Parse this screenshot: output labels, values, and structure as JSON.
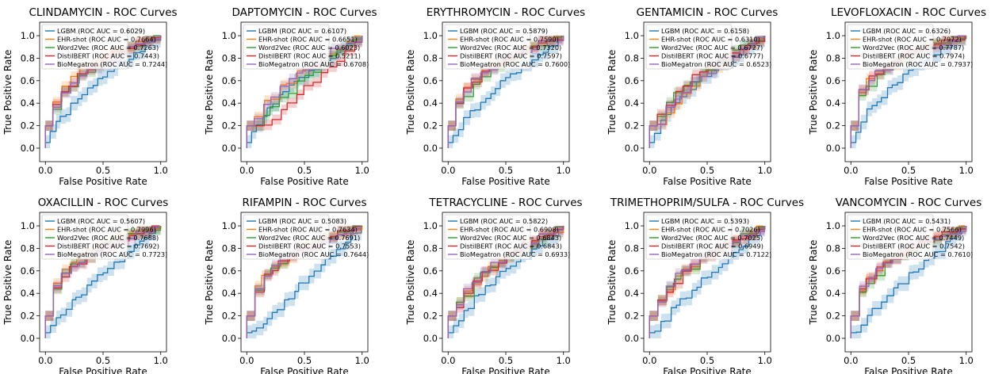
{
  "shared": {
    "xlabel": "False Positive Rate",
    "ylabel": "True Positive Rate",
    "xticks": [
      "0.0",
      "0.5",
      "1.0"
    ],
    "yticks": [
      "0.0",
      "0.2",
      "0.4",
      "0.6",
      "0.8",
      "1.0"
    ],
    "series_names": [
      "LGBM",
      "EHR-shot",
      "Word2Vec",
      "DistilBERT",
      "BioMegatron"
    ],
    "series_colors": [
      "#1f77b4",
      "#ff7f0e",
      "#2ca02c",
      "#d62728",
      "#9467bd"
    ]
  },
  "chart_data": [
    {
      "type": "line",
      "title": "CLINDAMYCIN - ROC Curves",
      "xlabel": "False Positive Rate",
      "ylabel": "True Positive Rate",
      "xlim": [
        0,
        1
      ],
      "ylim": [
        -0.1,
        1.1
      ],
      "grid": false,
      "legend": "upper-left",
      "series": [
        {
          "name": "LGBM",
          "auc_label": "LGBM (ROC AUC = 0.6029)",
          "auc": 0.6029
        },
        {
          "name": "EHR-shot",
          "auc_label": "EHR-shot (ROC AUC = 0.7664)",
          "auc": 0.7664
        },
        {
          "name": "Word2Vec",
          "auc_label": "Word2Vec (ROC AUC = 0.7263)",
          "auc": 0.7263
        },
        {
          "name": "DistilBERT",
          "auc_label": "DistilBERT (ROC AUC = 0.7443)",
          "auc": 0.7443
        },
        {
          "name": "BioMegatron",
          "auc_label": "BioMegatron (ROC AUC = 0.7244)",
          "auc": 0.7244
        }
      ]
    },
    {
      "type": "line",
      "title": "DAPTOMYCIN - ROC Curves",
      "xlabel": "False Positive Rate",
      "ylabel": "True Positive Rate",
      "xlim": [
        0,
        1
      ],
      "ylim": [
        -0.1,
        1.1
      ],
      "grid": false,
      "legend": "upper-left",
      "series": [
        {
          "name": "LGBM",
          "auc_label": "LGBM (ROC AUC = 0.6107)",
          "auc": 0.6107
        },
        {
          "name": "EHR-shot",
          "auc_label": "EHR-shot (ROC AUC = 0.6651)",
          "auc": 0.6651
        },
        {
          "name": "Word2Vec",
          "auc_label": "Word2Vec (ROC AUC = 0.6023)",
          "auc": 0.6023
        },
        {
          "name": "DistilBERT",
          "auc_label": "DistilBERT (ROC AUC = 0.5211)",
          "auc": 0.5211
        },
        {
          "name": "BioMegatron",
          "auc_label": "BioMegatron (ROC AUC = 0.6708)",
          "auc": 0.6708
        }
      ]
    },
    {
      "type": "line",
      "title": "ERYTHROMYCIN - ROC Curves",
      "xlabel": "False Positive Rate",
      "ylabel": "True Positive Rate",
      "xlim": [
        0,
        1
      ],
      "ylim": [
        -0.1,
        1.1
      ],
      "grid": false,
      "legend": "upper-left",
      "series": [
        {
          "name": "LGBM",
          "auc_label": "LGBM (ROC AUC = 0.5879)",
          "auc": 0.5879
        },
        {
          "name": "EHR-shot",
          "auc_label": "EHR-shot (ROC AUC = 0.7590)",
          "auc": 0.759
        },
        {
          "name": "Word2Vec",
          "auc_label": "Word2Vec (ROC AUC = 0.7320)",
          "auc": 0.732
        },
        {
          "name": "DistilBERT",
          "auc_label": "DistilBERT (ROC AUC = 0.7597)",
          "auc": 0.7597
        },
        {
          "name": "BioMegatron",
          "auc_label": "BioMegatron (ROC AUC = 0.7600)",
          "auc": 0.76
        }
      ]
    },
    {
      "type": "line",
      "title": "GENTAMICIN - ROC Curves",
      "xlabel": "False Positive Rate",
      "ylabel": "True Positive Rate",
      "xlim": [
        0,
        1
      ],
      "ylim": [
        -0.1,
        1.1
      ],
      "grid": false,
      "legend": "upper-left",
      "series": [
        {
          "name": "LGBM",
          "auc_label": "LGBM (ROC AUC = 0.6158)",
          "auc": 0.6158
        },
        {
          "name": "EHR-shot",
          "auc_label": "EHR-shot (ROC AUC = 0.6310)",
          "auc": 0.631
        },
        {
          "name": "Word2Vec",
          "auc_label": "Word2Vec (ROC AUC = 0.6727)",
          "auc": 0.6727
        },
        {
          "name": "DistilBERT",
          "auc_label": "DistilBERT (ROC AUC = 0.6777)",
          "auc": 0.6777
        },
        {
          "name": "BioMegatron",
          "auc_label": "BioMegatron (ROC AUC = 0.6523)",
          "auc": 0.6523
        }
      ]
    },
    {
      "type": "line",
      "title": "LEVOFLOXACIN - ROC Curves",
      "xlabel": "False Positive Rate",
      "ylabel": "True Positive Rate",
      "xlim": [
        0,
        1
      ],
      "ylim": [
        -0.1,
        1.1
      ],
      "grid": false,
      "legend": "upper-left",
      "series": [
        {
          "name": "LGBM",
          "auc_label": "LGBM (ROC AUC = 0.6326)",
          "auc": 0.6326
        },
        {
          "name": "EHR-shot",
          "auc_label": "EHR-shot (ROC AUC = 0.7972)",
          "auc": 0.7972
        },
        {
          "name": "Word2Vec",
          "auc_label": "Word2Vec (ROC AUC = 0.7787)",
          "auc": 0.7787
        },
        {
          "name": "DistilBERT",
          "auc_label": "DistilBERT (ROC AUC = 0.7974)",
          "auc": 0.7974
        },
        {
          "name": "BioMegatron",
          "auc_label": "BioMegatron (ROC AUC = 0.7937)",
          "auc": 0.7937
        }
      ]
    },
    {
      "type": "line",
      "title": "OXACILLIN - ROC Curves",
      "xlabel": "False Positive Rate",
      "ylabel": "True Positive Rate",
      "xlim": [
        0,
        1
      ],
      "ylim": [
        -0.1,
        1.1
      ],
      "grid": false,
      "legend": "upper-left",
      "series": [
        {
          "name": "LGBM",
          "auc_label": "LGBM (ROC AUC = 0.5607)",
          "auc": 0.5607
        },
        {
          "name": "EHR-shot",
          "auc_label": "EHR-shot (ROC AUC = 0.7996)",
          "auc": 0.7996
        },
        {
          "name": "Word2Vec",
          "auc_label": "Word2Vec (ROC AUC = 0.7688)",
          "auc": 0.7688
        },
        {
          "name": "DistilBERT",
          "auc_label": "DistilBERT (ROC AUC = 0.7692)",
          "auc": 0.7692
        },
        {
          "name": "BioMegatron",
          "auc_label": "BioMegatron (ROC AUC = 0.7723)",
          "auc": 0.7723
        }
      ]
    },
    {
      "type": "line",
      "title": "RIFAMPIN - ROC Curves",
      "xlabel": "False Positive Rate",
      "ylabel": "True Positive Rate",
      "xlim": [
        0,
        1
      ],
      "ylim": [
        -0.1,
        1.1
      ],
      "grid": false,
      "legend": "upper-left",
      "series": [
        {
          "name": "LGBM",
          "auc_label": "LGBM (ROC AUC = 0.5083)",
          "auc": 0.5083
        },
        {
          "name": "EHR-shot",
          "auc_label": "EHR-shot (ROC AUC = 0.7634)",
          "auc": 0.7634
        },
        {
          "name": "Word2Vec",
          "auc_label": "Word2Vec (ROC AUC = 0.7691)",
          "auc": 0.7691
        },
        {
          "name": "DistilBERT",
          "auc_label": "DistilBERT (ROC AUC = 0.7553)",
          "auc": 0.7553
        },
        {
          "name": "BioMegatron",
          "auc_label": "BioMegatron (ROC AUC = 0.7644)",
          "auc": 0.7644
        }
      ]
    },
    {
      "type": "line",
      "title": "TETRACYCLINE - ROC Curves",
      "xlabel": "False Positive Rate",
      "ylabel": "True Positive Rate",
      "xlim": [
        0,
        1
      ],
      "ylim": [
        -0.1,
        1.1
      ],
      "grid": false,
      "legend": "upper-left",
      "series": [
        {
          "name": "LGBM",
          "auc_label": "LGBM (ROC AUC = 0.5822)",
          "auc": 0.5822
        },
        {
          "name": "EHR-shot",
          "auc_label": "EHR-shot (ROC AUC = 0.6908)",
          "auc": 0.6908
        },
        {
          "name": "Word2Vec",
          "auc_label": "Word2Vec (ROC AUC = 0.6843)",
          "auc": 0.6843
        },
        {
          "name": "DistilBERT",
          "auc_label": "DistilBERT (ROC AUC = 0.6843)",
          "auc": 0.6843
        },
        {
          "name": "BioMegatron",
          "auc_label": "BioMegatron (ROC AUC = 0.6933)",
          "auc": 0.6933
        }
      ]
    },
    {
      "type": "line",
      "title": "TRIMETHOPRIM/SULFA - ROC Curves",
      "xlabel": "False Positive Rate",
      "ylabel": "True Positive Rate",
      "xlim": [
        0,
        1
      ],
      "ylim": [
        -0.1,
        1.1
      ],
      "grid": false,
      "legend": "upper-left",
      "series": [
        {
          "name": "LGBM",
          "auc_label": "LGBM (ROC AUC = 0.5393)",
          "auc": 0.5393
        },
        {
          "name": "EHR-shot",
          "auc_label": "EHR-shot (ROC AUC = 0.7026)",
          "auc": 0.7026
        },
        {
          "name": "Word2Vec",
          "auc_label": "Word2Vec (ROC AUC = 0.7025)",
          "auc": 0.7025
        },
        {
          "name": "DistilBERT",
          "auc_label": "DistilBERT (ROC AUC = 0.6949)",
          "auc": 0.6949
        },
        {
          "name": "BioMegatron",
          "auc_label": "BioMegatron (ROC AUC = 0.7122)",
          "auc": 0.7122
        }
      ]
    },
    {
      "type": "line",
      "title": "VANCOMYCIN - ROC Curves",
      "xlabel": "False Positive Rate",
      "ylabel": "True Positive Rate",
      "xlim": [
        0,
        1
      ],
      "ylim": [
        -0.1,
        1.1
      ],
      "grid": false,
      "legend": "upper-left",
      "series": [
        {
          "name": "LGBM",
          "auc_label": "LGBM (ROC AUC = 0.5431)",
          "auc": 0.5431
        },
        {
          "name": "EHR-shot",
          "auc_label": "EHR-shot (ROC AUC = 0.7566)",
          "auc": 0.7566
        },
        {
          "name": "Word2Vec",
          "auc_label": "Word2Vec (ROC AUC = 0.7449)",
          "auc": 0.7449
        },
        {
          "name": "DistilBERT",
          "auc_label": "DistilBERT (ROC AUC = 0.7542)",
          "auc": 0.7542
        },
        {
          "name": "BioMegatron",
          "auc_label": "BioMegatron (ROC AUC = 0.7610)",
          "auc": 0.761
        }
      ]
    }
  ]
}
